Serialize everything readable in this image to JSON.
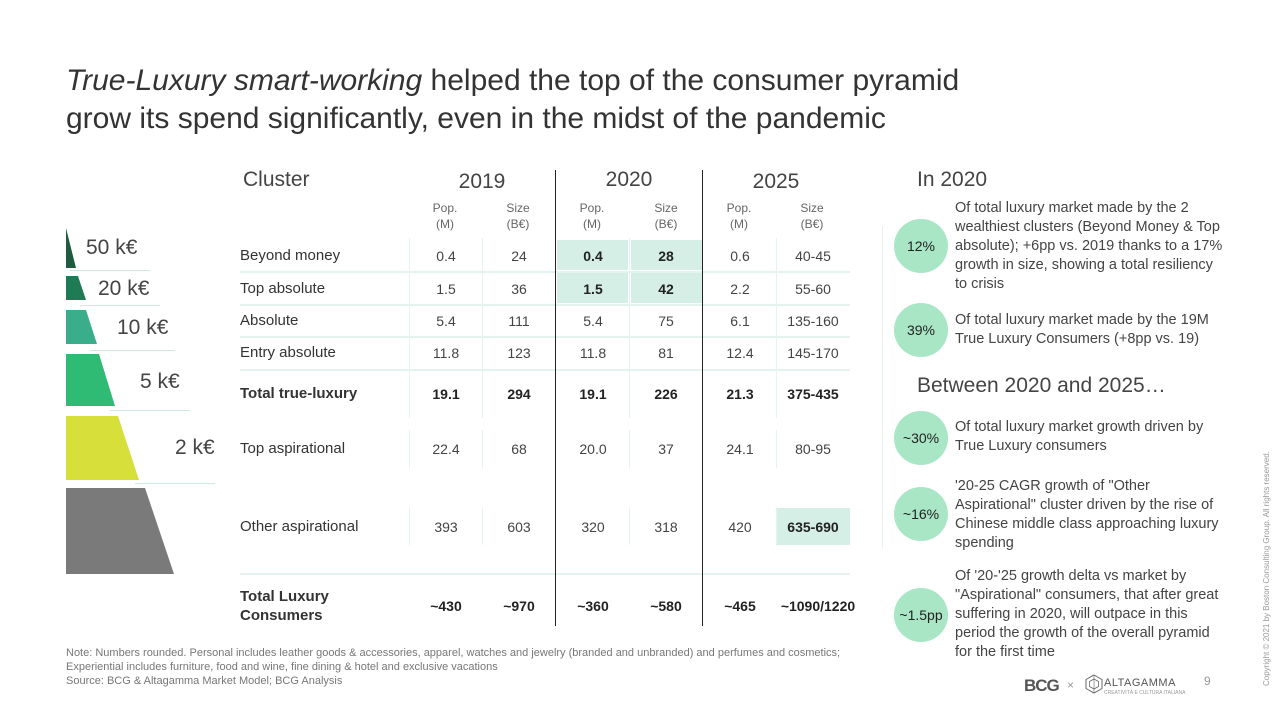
{
  "title": {
    "italic": "True-Luxury smart-working",
    "rest_line1": " helped the top of the consumer pyramid",
    "line2": "grow its spend significantly, even in the midst of the pandemic"
  },
  "pyramid": {
    "labels": [
      "50 k€",
      "20 k€",
      "10 k€",
      "5 k€",
      "2 k€"
    ],
    "colors": [
      "#1f5b3f",
      "#1f7a56",
      "#3aae8a",
      "#2fbb74",
      "#d7e03a",
      "#7a7a7a"
    ]
  },
  "table": {
    "cluster_header": "Cluster",
    "years": [
      "2019",
      "2020",
      "2025"
    ],
    "sub": {
      "pop_1": "Pop.",
      "pop_2": "(M)",
      "size_1": "Size",
      "size_2": "(B€)"
    },
    "rows": [
      {
        "label": "Beyond money",
        "v": [
          "0.4",
          "24",
          "0.4",
          "28",
          "0.6",
          "40-45"
        ]
      },
      {
        "label": "Top absolute",
        "v": [
          "1.5",
          "36",
          "1.5",
          "42",
          "2.2",
          "55-60"
        ]
      },
      {
        "label": "Absolute",
        "v": [
          "5.4",
          "111",
          "5.4",
          "75",
          "6.1",
          "135-160"
        ]
      },
      {
        "label": "Entry absolute",
        "v": [
          "11.8",
          "123",
          "11.8",
          "81",
          "12.4",
          "145-170"
        ]
      },
      {
        "label": "Total true-luxury",
        "v": [
          "19.1",
          "294",
          "19.1",
          "226",
          "21.3",
          "375-435"
        ]
      },
      {
        "label": "Top aspirational",
        "v": [
          "22.4",
          "68",
          "20.0",
          "37",
          "24.1",
          "80-95"
        ]
      },
      {
        "label": "Other aspirational",
        "v": [
          "393",
          "603",
          "320",
          "318",
          "420",
          "635-690"
        ]
      },
      {
        "label_1": "Total Luxury",
        "label_2": "Consumers",
        "v": [
          "~430",
          "~970",
          "~360",
          "~580",
          "~465",
          "~1090/1220"
        ]
      }
    ],
    "highlight_color": "#d6efe6"
  },
  "right": {
    "section1": "In 2020",
    "section2": "Between 2020 and 2025…",
    "items": [
      {
        "badge": "12%",
        "lines": [
          "Of total luxury market made by the 2",
          "wealthiest clusters (Beyond Money & Top",
          "absolute); +6pp vs. 2019 thanks to a 17%",
          "growth in size, showing a total resiliency",
          "to crisis"
        ]
      },
      {
        "badge": "39%",
        "lines": [
          "Of total luxury market made by the 19M",
          "True Luxury Consumers (+8pp vs. 19)"
        ]
      },
      {
        "badge": "~30%",
        "lines": [
          "Of total luxury market growth driven by",
          "True Luxury consumers"
        ]
      },
      {
        "badge": "~16%",
        "lines": [
          "'20-25 CAGR growth of \"Other",
          "Aspirational\" cluster driven by the rise of",
          "Chinese middle class approaching luxury",
          "spending"
        ]
      },
      {
        "badge": "~1.5pp",
        "lines": [
          "Of '20-'25 growth delta vs market by",
          "\"Aspirational\" consumers, that after great",
          "suffering in 2020, will outpace in this",
          "period the growth of the overall pyramid",
          "for the first time"
        ]
      }
    ],
    "badge_color": "#a8e6c6"
  },
  "footer": {
    "note_1": "Note: Numbers rounded. Personal includes leather goods & accessories, apparel, watches and jewelry (branded and unbranded) and perfumes and cosmetics;",
    "note_2": "Experiential includes furniture, food and wine, fine dining & hotel and exclusive vacations",
    "source": "Source: BCG & Altagamma Market Model; BCG Analysis",
    "copyright": "Copyright © 2021 by Boston Consulting Group. All rights reserved.",
    "logo_bcg": "BCG",
    "logo_x": "×",
    "logo_altagamma": "ALTAGAMMA",
    "logo_altagamma_tag": "CREATIVITÀ E CULTURA ITALIANA",
    "page_number": "9"
  }
}
